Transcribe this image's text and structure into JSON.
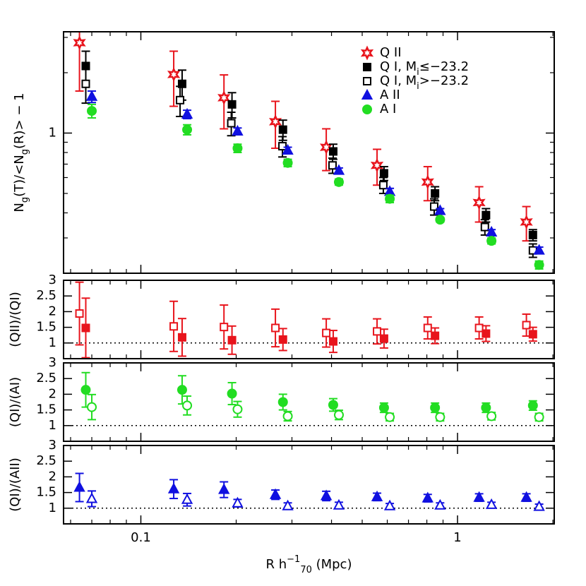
{
  "chart_data": [
    {
      "type": "scatter",
      "ylabel": [
        {
          "text": "N"
        },
        {
          "text": "g",
          "shift": "sub"
        },
        {
          "text": "(T)/<N"
        },
        {
          "text": "g",
          "shift": "sub"
        },
        {
          "text": "(R)> − 1"
        }
      ],
      "ylog": true,
      "ylim": [
        0.2,
        3.2
      ],
      "yticks": [
        1
      ],
      "yminorticks": [
        0.2,
        0.3,
        0.4,
        0.5,
        0.6,
        0.7,
        0.8,
        0.9,
        2,
        3
      ],
      "legend": "upper right",
      "series": [
        {
          "name": "Q II",
          "color": "#e8141c",
          "marker": "star",
          "filled": false,
          "x": [
            0.064,
            0.127,
            0.183,
            0.266,
            0.385,
            0.557,
            0.805,
            1.17,
            1.65
          ],
          "values": [
            2.82,
            1.96,
            1.5,
            1.14,
            0.85,
            0.69,
            0.57,
            0.45,
            0.36
          ],
          "errors": [
            1.2,
            0.6,
            0.45,
            0.3,
            0.2,
            0.14,
            0.11,
            0.09,
            0.07
          ]
        },
        {
          "name": [
            {
              "text": "Q I, M"
            },
            {
              "text": "i",
              "shift": "sub"
            },
            {
              "text": "≤−23.2"
            }
          ],
          "color": "#000000",
          "marker": "square",
          "filled": true,
          "x": [
            0.067,
            0.135,
            0.194,
            0.281,
            0.405,
            0.586,
            0.849,
            1.23,
            1.73
          ],
          "values": [
            2.16,
            1.76,
            1.39,
            1.04,
            0.81,
            0.63,
            0.5,
            0.39,
            0.31
          ],
          "errors": [
            0.4,
            0.3,
            0.2,
            0.12,
            0.07,
            0.05,
            0.04,
            0.03,
            0.02
          ]
        },
        {
          "name": [
            {
              "text": "Q I, M"
            },
            {
              "text": "i",
              "shift": "sub"
            },
            {
              "text": ">−23.2"
            }
          ],
          "color": "#000000",
          "marker": "square",
          "filled": false,
          "x": [
            0.067,
            0.133,
            0.193,
            0.28,
            0.403,
            0.583,
            0.844,
            1.22,
            1.73
          ],
          "values": [
            1.76,
            1.46,
            1.12,
            0.86,
            0.69,
            0.55,
            0.43,
            0.34,
            0.26
          ],
          "errors": [
            0.35,
            0.25,
            0.15,
            0.1,
            0.06,
            0.05,
            0.04,
            0.03,
            0.02
          ]
        },
        {
          "name": "A II",
          "color": "#1010e0",
          "marker": "triangle",
          "filled": true,
          "x": [
            0.07,
            0.14,
            0.202,
            0.291,
            0.422,
            0.611,
            0.881,
            1.28,
            1.81
          ],
          "values": [
            1.52,
            1.24,
            1.02,
            0.82,
            0.65,
            0.51,
            0.41,
            0.32,
            0.26
          ],
          "errors": [
            0.1,
            0.06,
            0.04,
            0.03,
            0.02,
            0.02,
            0.01,
            0.01,
            0.01
          ]
        },
        {
          "name": "A I",
          "color": "#22dd22",
          "marker": "circle",
          "filled": true,
          "x": [
            0.07,
            0.14,
            0.202,
            0.291,
            0.422,
            0.611,
            0.881,
            1.28,
            1.81
          ],
          "values": [
            1.29,
            1.04,
            0.84,
            0.71,
            0.57,
            0.47,
            0.37,
            0.29,
            0.22
          ],
          "errors": [
            0.1,
            0.06,
            0.04,
            0.03,
            0.02,
            0.02,
            0.01,
            0.01,
            0.01
          ]
        }
      ]
    },
    {
      "type": "scatter",
      "ylabel": "(QII)/(QI)",
      "ylim": [
        0.5,
        3
      ],
      "yticks": [
        1,
        1.5,
        2,
        2.5,
        3
      ],
      "refline": 1,
      "series": [
        {
          "color": "#e8141c",
          "marker": "square",
          "filled": false,
          "x": [
            0.064,
            0.127,
            0.183,
            0.266,
            0.385,
            0.557,
            0.805,
            1.17,
            1.65
          ],
          "values": [
            1.94,
            1.53,
            1.51,
            1.48,
            1.32,
            1.37,
            1.48,
            1.48,
            1.57
          ],
          "errors": [
            1.0,
            0.8,
            0.7,
            0.6,
            0.45,
            0.4,
            0.35,
            0.35,
            0.35
          ]
        },
        {
          "color": "#e8141c",
          "marker": "square",
          "filled": true,
          "x": [
            0.067,
            0.135,
            0.194,
            0.281,
            0.405,
            0.586,
            0.849,
            1.23,
            1.73
          ],
          "values": [
            1.48,
            1.18,
            1.09,
            1.11,
            1.05,
            1.14,
            1.23,
            1.3,
            1.28
          ],
          "errors": [
            0.95,
            0.6,
            0.45,
            0.35,
            0.35,
            0.3,
            0.25,
            0.25,
            0.22
          ]
        }
      ]
    },
    {
      "type": "scatter",
      "ylabel": "(QI)/(AI)",
      "ylim": [
        0.5,
        3
      ],
      "yticks": [
        1,
        1.5,
        2,
        2.5,
        3
      ],
      "refline": 1,
      "series": [
        {
          "color": "#22dd22",
          "marker": "circle",
          "filled": true,
          "x": [
            0.067,
            0.135,
            0.194,
            0.281,
            0.405,
            0.586,
            0.849,
            1.23,
            1.73
          ],
          "values": [
            2.14,
            2.14,
            2.02,
            1.75,
            1.66,
            1.57,
            1.57,
            1.57,
            1.64
          ],
          "errors": [
            0.55,
            0.45,
            0.35,
            0.25,
            0.2,
            0.15,
            0.15,
            0.15,
            0.15
          ]
        },
        {
          "color": "#22dd22",
          "marker": "circle",
          "filled": false,
          "x": [
            0.07,
            0.14,
            0.202,
            0.291,
            0.422,
            0.611,
            0.881,
            1.28,
            1.81
          ],
          "values": [
            1.59,
            1.64,
            1.52,
            1.3,
            1.34,
            1.27,
            1.27,
            1.3,
            1.27
          ],
          "errors": [
            0.4,
            0.3,
            0.25,
            0.15,
            0.15,
            0.12,
            0.12,
            0.12,
            0.12
          ]
        }
      ]
    },
    {
      "type": "scatter",
      "ylabel": "(QI)/(AII)",
      "ylim": [
        0.5,
        3
      ],
      "yticks": [
        1,
        1.5,
        2,
        2.5,
        3
      ],
      "refline": 1,
      "xlog": true,
      "xlim": [
        0.057,
        2.02
      ],
      "xticks": [
        0.1,
        1
      ],
      "xminorticks": [
        0.06,
        0.07,
        0.08,
        0.09,
        0.2,
        0.3,
        0.4,
        0.5,
        0.6,
        0.7,
        0.8,
        0.9,
        2
      ],
      "xlabel": [
        {
          "text": "R  h"
        },
        {
          "text": "−1",
          "shift": "super"
        },
        {
          "text": "70",
          "shift": "sub"
        },
        {
          "text": "  (Mpc)"
        }
      ],
      "series": [
        {
          "color": "#1010e0",
          "marker": "triangle",
          "filled": true,
          "x": [
            0.064,
            0.127,
            0.183,
            0.266,
            0.385,
            0.557,
            0.805,
            1.17,
            1.65
          ],
          "values": [
            1.66,
            1.61,
            1.59,
            1.43,
            1.39,
            1.36,
            1.32,
            1.34,
            1.34
          ],
          "errors": [
            0.45,
            0.3,
            0.25,
            0.15,
            0.15,
            0.12,
            0.12,
            0.12,
            0.12
          ]
        },
        {
          "color": "#1010e0",
          "marker": "triangle",
          "filled": false,
          "x": [
            0.07,
            0.14,
            0.202,
            0.291,
            0.422,
            0.611,
            0.881,
            1.28,
            1.81
          ],
          "values": [
            1.3,
            1.27,
            1.16,
            1.07,
            1.09,
            1.07,
            1.09,
            1.11,
            1.05
          ],
          "errors": [
            0.25,
            0.2,
            0.12,
            0.1,
            0.1,
            0.08,
            0.08,
            0.08,
            0.08
          ]
        }
      ]
    }
  ]
}
